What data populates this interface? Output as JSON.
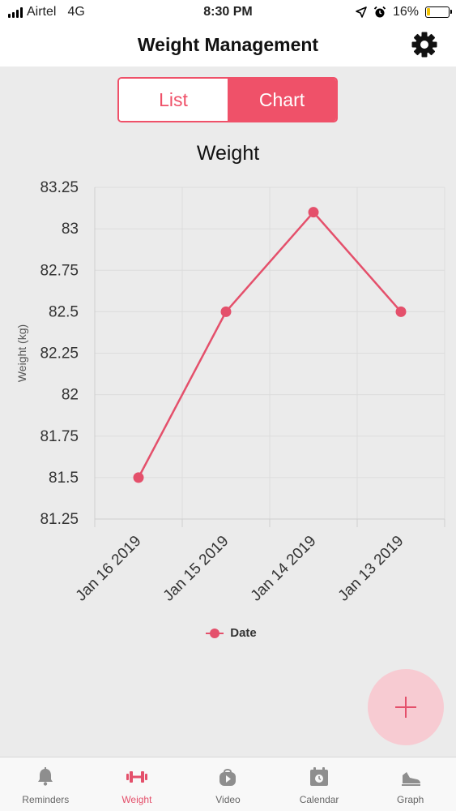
{
  "status_bar": {
    "carrier": "Airtel",
    "network": "4G",
    "time": "8:30 PM",
    "battery_text": "16%",
    "battery_level": 0.16
  },
  "header": {
    "title": "Weight Management",
    "settings_icon": "gear-icon"
  },
  "segmented_control": {
    "options": [
      "List",
      "Chart"
    ],
    "selected": "Chart"
  },
  "colors": {
    "accent": "#ef5169",
    "line": "#e4506b",
    "fab_background": "#f7cbd2",
    "content_background": "#ebebeb"
  },
  "chart_data": {
    "type": "line",
    "title": "Weight",
    "xlabel": "",
    "ylabel": "Weight (kg)",
    "categories": [
      "Jan 16 2019",
      "Jan 15 2019",
      "Jan 14 2019",
      "Jan 13 2019"
    ],
    "series": [
      {
        "name": "Date",
        "values": [
          81.5,
          82.5,
          83.1,
          82.5
        ]
      }
    ],
    "ylim": [
      81.25,
      83.25
    ],
    "yticks": [
      "83.25",
      "83",
      "82.75",
      "82.5",
      "82.25",
      "82",
      "81.75",
      "81.5",
      "81.25"
    ],
    "grid": true,
    "legend_position": "bottom"
  },
  "fab": {
    "icon": "plus-icon"
  },
  "tabs": [
    {
      "label": "Reminders",
      "icon": "bell-icon",
      "active": false
    },
    {
      "label": "Weight",
      "icon": "dumbbell-icon",
      "active": true
    },
    {
      "label": "Video",
      "icon": "play-bag-icon",
      "active": false
    },
    {
      "label": "Calendar",
      "icon": "calendar-icon",
      "active": false
    },
    {
      "label": "Graph",
      "icon": "shoe-icon",
      "active": false
    }
  ]
}
